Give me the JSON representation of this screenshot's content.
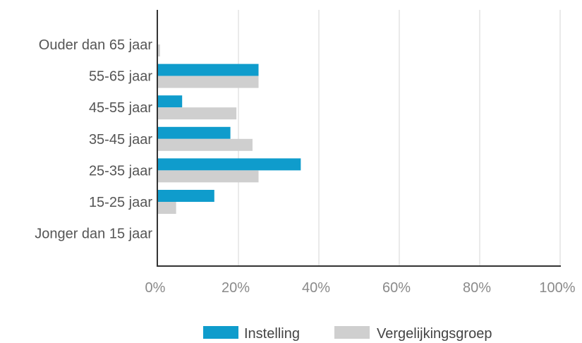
{
  "chart_data": {
    "type": "bar",
    "orientation": "horizontal",
    "categories": [
      "Ouder dan 65 jaar",
      "55-65 jaar",
      "45-55 jaar",
      "35-45 jaar",
      "25-35 jaar",
      "15-25 jaar",
      "Jonger dan 15 jaar"
    ],
    "series": [
      {
        "name": "Instelling",
        "color": "#0f9ccc",
        "values": [
          0,
          25,
          6,
          18,
          35.5,
          14,
          0
        ]
      },
      {
        "name": "Vergelijkingsgroep",
        "color": "#cfcfcf",
        "values": [
          0.5,
          25,
          19.5,
          23.5,
          25,
          4.5,
          0
        ]
      }
    ],
    "x_ticks": [
      "0%",
      "20%",
      "40%",
      "60%",
      "80%",
      "100%"
    ],
    "xlim": [
      0,
      100
    ],
    "grid": true,
    "legend_position": "bottom"
  }
}
